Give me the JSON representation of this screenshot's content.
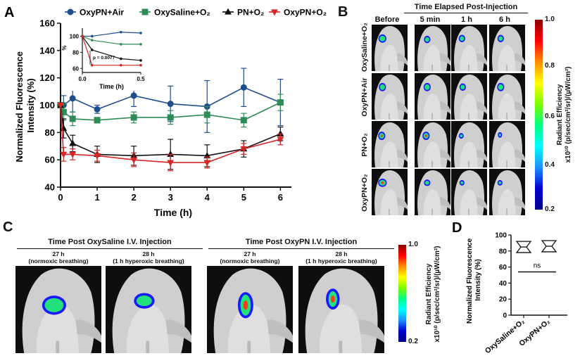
{
  "figure": {
    "panel_a_label": "A",
    "panel_b_label": "B",
    "panel_c_label": "C",
    "panel_d_label": "D"
  },
  "panel_b": {
    "header_title": "Time Elapsed Post-Injection",
    "columns": [
      "Before",
      "5 min",
      "1 h",
      "6 h"
    ],
    "rows": [
      "OxySaline+O₂",
      "OxyPN+Air",
      "PN+O₂",
      "OxyPN+O₂"
    ],
    "colorbar_label": "Radiant Efficiency",
    "colorbar_units": "x10¹⁰ (p/sec/cm²/sr)/(µW/cm²)",
    "colorbar_max": "1.0",
    "colorbar_ticks": [
      "0.8",
      "0.6",
      "0.4"
    ],
    "colorbar_min": "0.2"
  },
  "panel_c": {
    "left_title": "Time Post OxySaline I.V. Injection",
    "right_title": "Time Post OxyPN I.V. Injection",
    "images": [
      {
        "time": "27 h",
        "condition": "(normoxic breathing)"
      },
      {
        "time": "28 h",
        "condition": "(1 h hyperoxic breathing)"
      },
      {
        "time": "27 h",
        "condition": "(normoxic breathing)"
      },
      {
        "time": "28 h",
        "condition": "(1 h hyperoxic breathing)"
      }
    ],
    "colorbar_label": "Radiant Efficiency",
    "colorbar_units": "x10¹⁰ (p/sec/cm²/sr)/(µW/cm²)",
    "colorbar_max": "1.0",
    "colorbar_min": "0.2"
  },
  "colors": {
    "oxypn_air": "#1f4e8c",
    "oxysaline_o2": "#2e8b57",
    "pn_o2": "#111111",
    "oxypn_o2": "#d62728"
  },
  "chart_data": [
    {
      "id": "panel_a_main",
      "type": "line",
      "title": "",
      "xlabel": "Time (h)",
      "ylabel": "Normalized Fluorescence Intensity (%)",
      "xlim": [
        0,
        6.3
      ],
      "ylim": [
        40,
        160
      ],
      "xticks": [
        "0",
        "1",
        "2",
        "3",
        "4",
        "5",
        "6"
      ],
      "yticks": [
        "40",
        "60",
        "80",
        "100",
        "120",
        "140",
        "160"
      ],
      "legend_position": "top",
      "series": [
        {
          "name": "OxyPN+Air",
          "marker": "circle",
          "color": "#1f4e8c",
          "x": [
            0,
            0.083,
            0.33,
            1,
            2,
            3,
            4,
            5,
            6
          ],
          "y": [
            100,
            100,
            105,
            97,
            107,
            101,
            99,
            113,
            102
          ],
          "err": [
            0,
            7,
            10,
            3,
            8,
            13,
            19,
            14,
            17
          ]
        },
        {
          "name": "OxySaline+O₂",
          "marker": "square",
          "color": "#2e8b57",
          "x": [
            0,
            0.083,
            0.33,
            1,
            2,
            3,
            4,
            5,
            6
          ],
          "y": [
            100,
            95,
            90,
            89,
            91,
            91,
            93,
            89,
            102
          ],
          "err": [
            0,
            6,
            5,
            2,
            4,
            5,
            6,
            5,
            6
          ]
        },
        {
          "name": "PN+O₂",
          "marker": "triangle-up",
          "color": "#111111",
          "x": [
            0,
            0.083,
            0.33,
            1,
            2,
            3,
            4,
            5,
            6
          ],
          "y": [
            100,
            83,
            72,
            64,
            63,
            64,
            63,
            68,
            79
          ],
          "err": [
            0,
            7,
            6,
            6,
            7,
            11,
            8,
            6,
            5
          ]
        },
        {
          "name": "OxyPN+O₂",
          "marker": "triangle-down",
          "color": "#d62728",
          "x": [
            0,
            0.083,
            0.33,
            1,
            2,
            3,
            4,
            5,
            6
          ],
          "y": [
            100,
            64,
            64,
            63,
            60,
            58,
            58,
            68,
            75
          ],
          "err": [
            0,
            5,
            4,
            4,
            5,
            6,
            4,
            4,
            4
          ]
        }
      ]
    },
    {
      "id": "panel_a_inset",
      "type": "line",
      "xlabel": "Time (h)",
      "ylabel": "%",
      "xlim": [
        0,
        0.5
      ],
      "ylim": [
        55,
        110
      ],
      "xticks": [
        "0.0",
        "0.5"
      ],
      "yticks": [
        "60",
        "80",
        "100"
      ],
      "annotation": "p = 0.0077",
      "series": [
        {
          "name": "OxyPN+Air",
          "color": "#1f4e8c",
          "x": [
            0,
            0.083,
            0.33,
            0.5
          ],
          "y": [
            100,
            100,
            105,
            104
          ]
        },
        {
          "name": "OxySaline+O₂",
          "color": "#2e8b57",
          "x": [
            0,
            0.083,
            0.33,
            0.5
          ],
          "y": [
            100,
            95,
            90,
            90
          ]
        },
        {
          "name": "PN+O₂",
          "color": "#111111",
          "x": [
            0,
            0.083,
            0.33,
            0.5
          ],
          "y": [
            100,
            83,
            72,
            70
          ]
        },
        {
          "name": "OxyPN+O₂",
          "color": "#d62728",
          "x": [
            0,
            0.083,
            0.33,
            0.5
          ],
          "y": [
            100,
            64,
            64,
            64
          ]
        }
      ]
    },
    {
      "id": "panel_d",
      "type": "box",
      "ylabel": "Normalized Fluorescence Intensity (%)",
      "ylim": [
        0,
        100
      ],
      "yticks": [
        "0",
        "20",
        "40",
        "60",
        "80",
        "100"
      ],
      "categories": [
        "OxySaline+O₂",
        "OxyPN+O₂"
      ],
      "boxes": [
        {
          "name": "OxySaline+O₂",
          "min": 78,
          "median": 85,
          "max": 92
        },
        {
          "name": "OxyPN+O₂",
          "min": 79,
          "median": 86,
          "max": 93
        }
      ],
      "annotation": "ns",
      "annotation_y": 54
    }
  ]
}
